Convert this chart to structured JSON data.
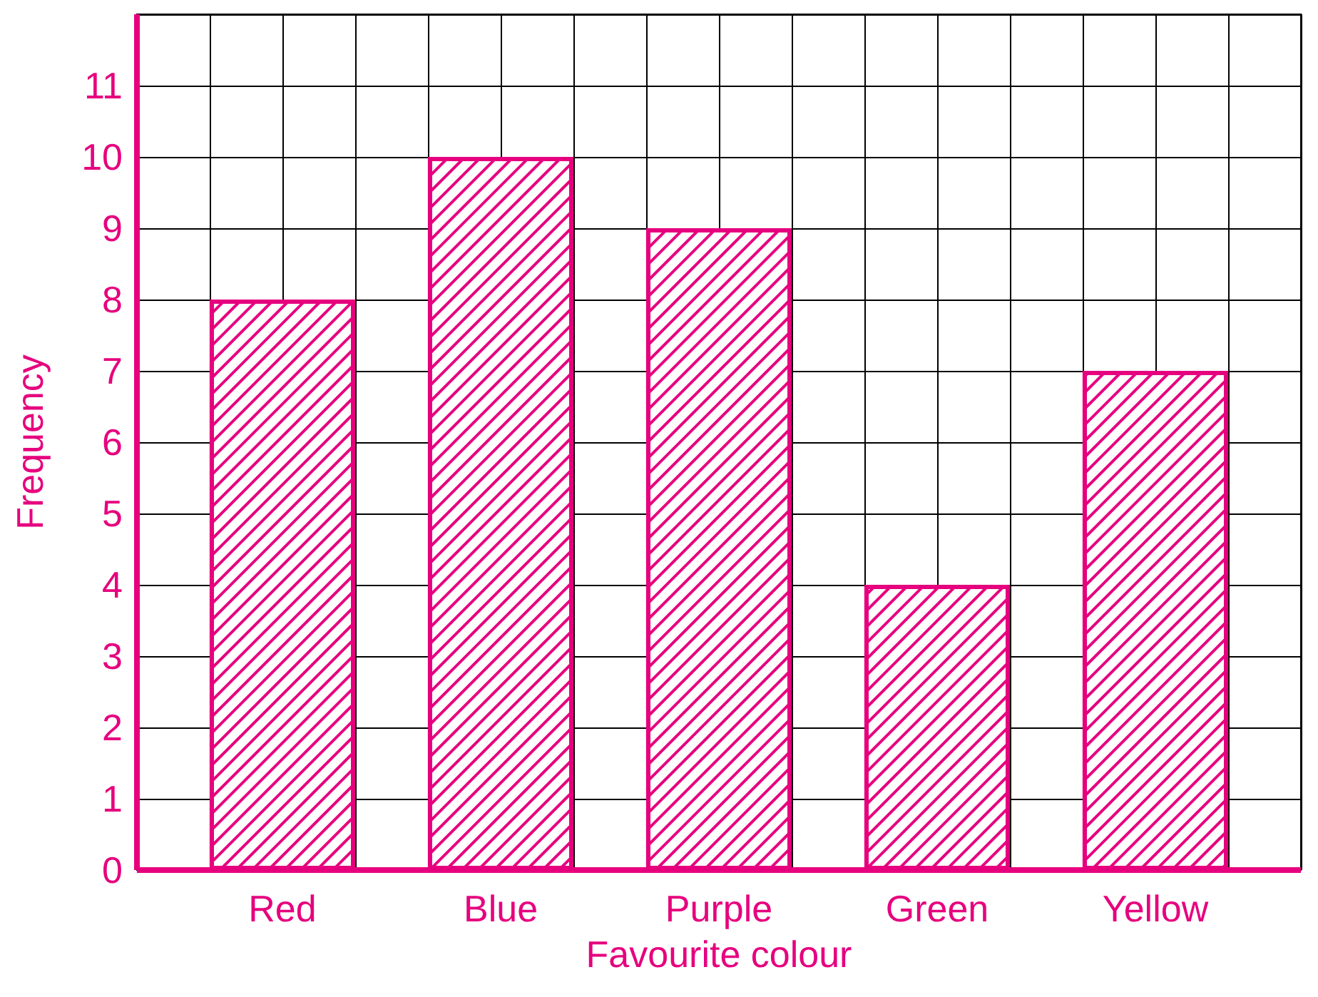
{
  "chart_data": {
    "type": "bar",
    "xlabel": "Favourite colour",
    "ylabel": "Frequency",
    "categories": [
      "Red",
      "Blue",
      "Purple",
      "Green",
      "Yellow"
    ],
    "values": [
      8,
      10,
      9,
      4,
      7
    ],
    "color": "#e6007e",
    "ylim": [
      0,
      12
    ],
    "yticks": [
      0,
      1,
      2,
      3,
      4,
      5,
      6,
      7,
      8,
      9,
      10,
      11
    ],
    "grid": true
  }
}
